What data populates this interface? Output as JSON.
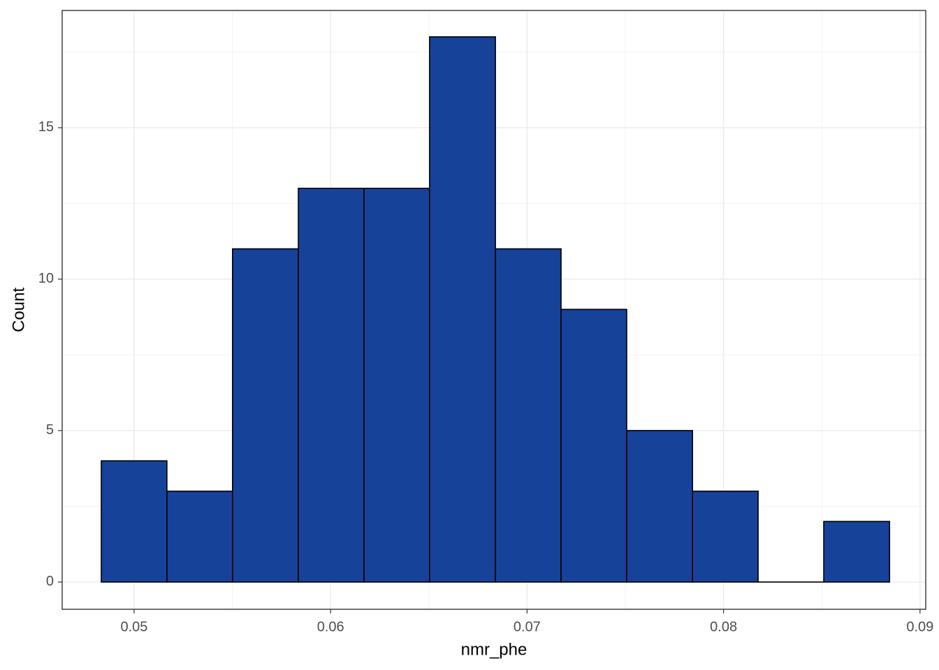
{
  "chart_data": {
    "type": "histogram",
    "x_label": "nmr_phe",
    "y_label": "Count",
    "bins": [
      0.04833,
      0.05167,
      0.05501,
      0.05836,
      0.0617,
      0.06504,
      0.06839,
      0.07173,
      0.07507,
      0.07842,
      0.08176,
      0.0851,
      0.08845
    ],
    "values": [
      4,
      3,
      11,
      13,
      13,
      18,
      11,
      9,
      5,
      3,
      0,
      2
    ],
    "color": "#17429a",
    "edge_color": "#000000",
    "xlim": [
      0.04634,
      0.09029
    ],
    "xticks": [
      0.05,
      0.06,
      0.07,
      0.08,
      0.09
    ],
    "ylim": [
      -0.9,
      18.87
    ],
    "yticks": [
      0,
      5,
      10,
      15
    ],
    "grid": true
  }
}
